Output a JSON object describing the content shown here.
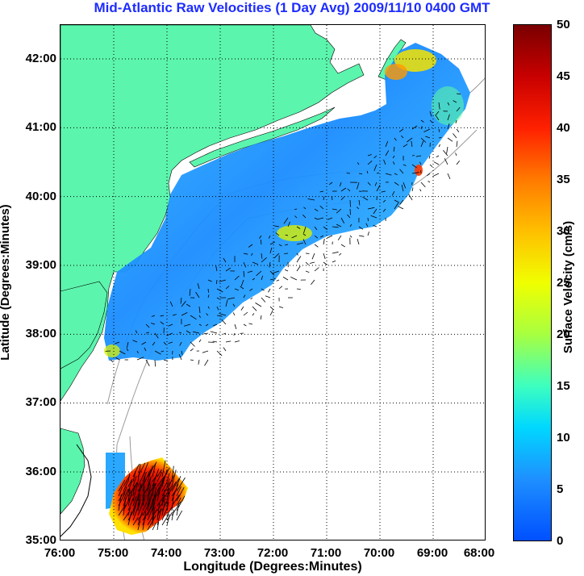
{
  "title": "Mid-Atlantic Raw Velocities (1 Day Avg) 2009/11/10 0400 GMT",
  "axes": {
    "xlabel": "Longitude (Degrees:Minutes)",
    "ylabel": "Latitude (Degrees:Minutes)",
    "lat_ticks": [
      "42:00",
      "41:00",
      "40:00",
      "39:00",
      "38:00",
      "37:00",
      "36:00",
      "35:00"
    ],
    "lon_ticks": [
      "76:00",
      "75:00",
      "74:00",
      "73:00",
      "72:00",
      "71:00",
      "70:00",
      "69:00",
      "68:00"
    ],
    "lat_range": [
      35.0,
      42.5
    ],
    "lon_range": [
      -76.0,
      -68.0
    ],
    "grid": "dotted"
  },
  "colorbar": {
    "title": "Surface Velocity (cm/s)",
    "min": 0,
    "max": 50,
    "ticks": [
      "50",
      "45",
      "40",
      "35",
      "30",
      "25",
      "20",
      "15",
      "10",
      "5",
      "0"
    ],
    "colormap": "jet"
  },
  "colors": {
    "title": "#1d2cff",
    "land": "#5cf5ad",
    "water": "#ffffff",
    "bathymetry": "#9a9a9a",
    "grid": "#000000"
  }
}
